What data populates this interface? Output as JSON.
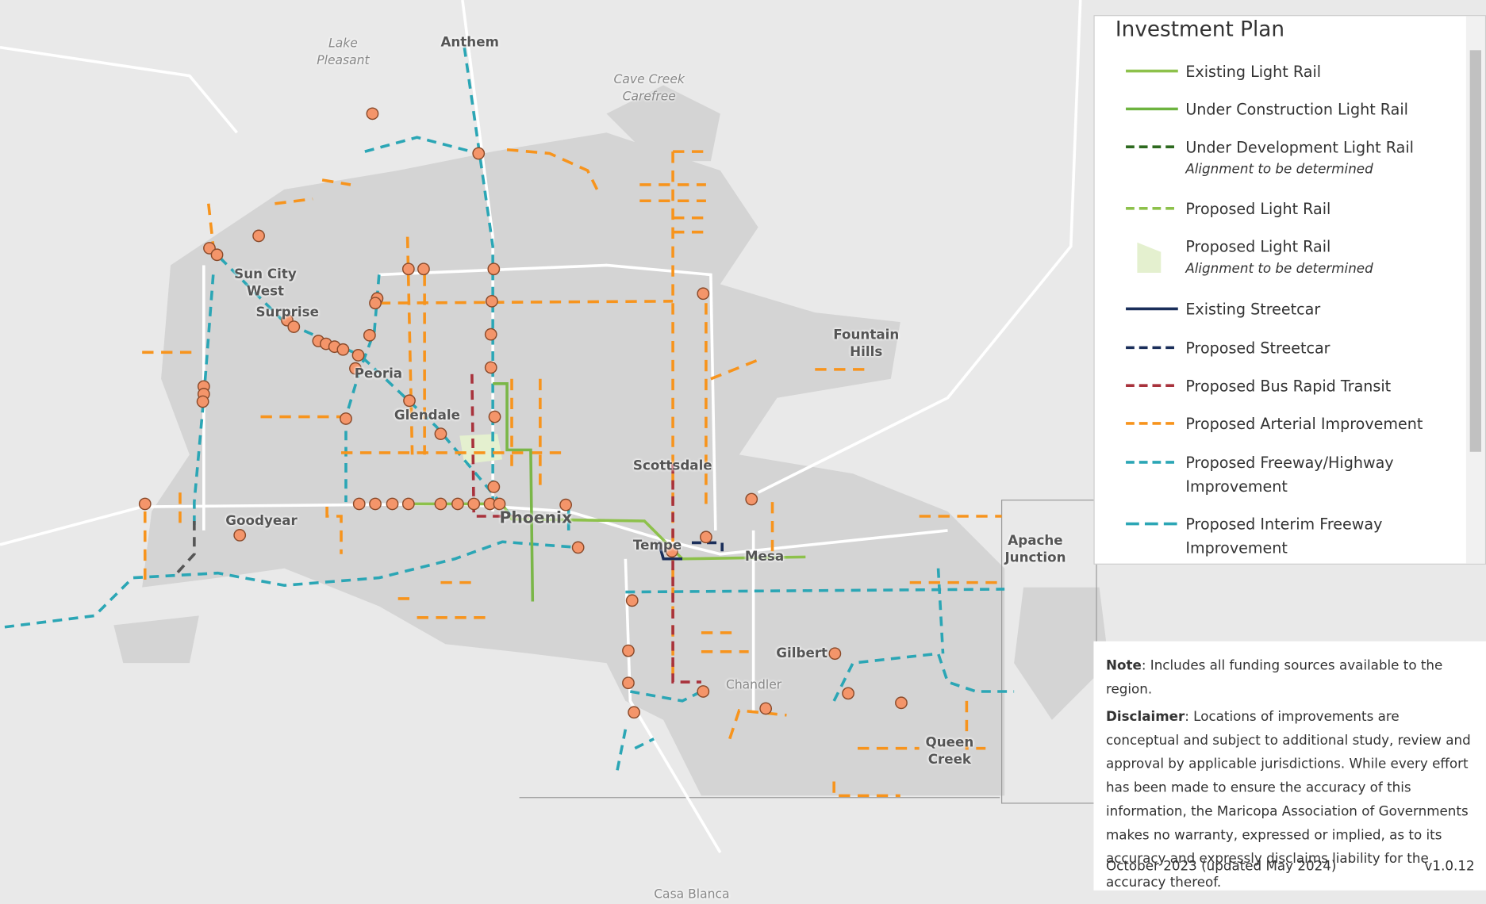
{
  "map": {
    "labels": [
      "Anthem",
      "Lake Pleasant",
      "Cave Creek Carefree",
      "Sun City West",
      "Surprise",
      "Peoria",
      "Glendale",
      "Scottsdale",
      "Phoenix",
      "Goodyear",
      "Tempe",
      "Mesa",
      "Fountain Hills",
      "Apache Junction",
      "Gilbert",
      "Chandler",
      "Queen Creek",
      "Casa Blanca"
    ]
  },
  "legend": {
    "title": "Investment Plan",
    "items": [
      {
        "label": "Existing Light Rail"
      },
      {
        "label": "Under Construction Light Rail"
      },
      {
        "label": "Under Development Light Rail",
        "note": "Alignment to be determined"
      },
      {
        "label": "Proposed Light Rail"
      },
      {
        "label": "Proposed Light Rail",
        "note": "Alignment to be determined"
      },
      {
        "label": "Existing Streetcar"
      },
      {
        "label": "Proposed Streetcar"
      },
      {
        "label": "Proposed Bus Rapid Transit"
      },
      {
        "label": "Proposed Arterial Improvement"
      },
      {
        "label": "Proposed Freeway/Highway Improvement"
      },
      {
        "label": "Proposed Interim Freeway Improvement"
      }
    ]
  },
  "notes": {
    "note_label": "Note",
    "note": ": Includes all funding sources available to the region.",
    "disclaimer_label": "Disclaimer",
    "disclaimer": ": Locations of improvements are conceptual and subject to additional study, review and approval by applicable jurisdictions. While every effort has been made to ensure the accuracy of this information, the Maricopa Association of Governments makes no warranty, expressed or implied, as to its accuracy and expressly disclaims liability for the accuracy thereof.",
    "date": "October 2023 (updated May 2024)",
    "version": "v1.0.12"
  }
}
